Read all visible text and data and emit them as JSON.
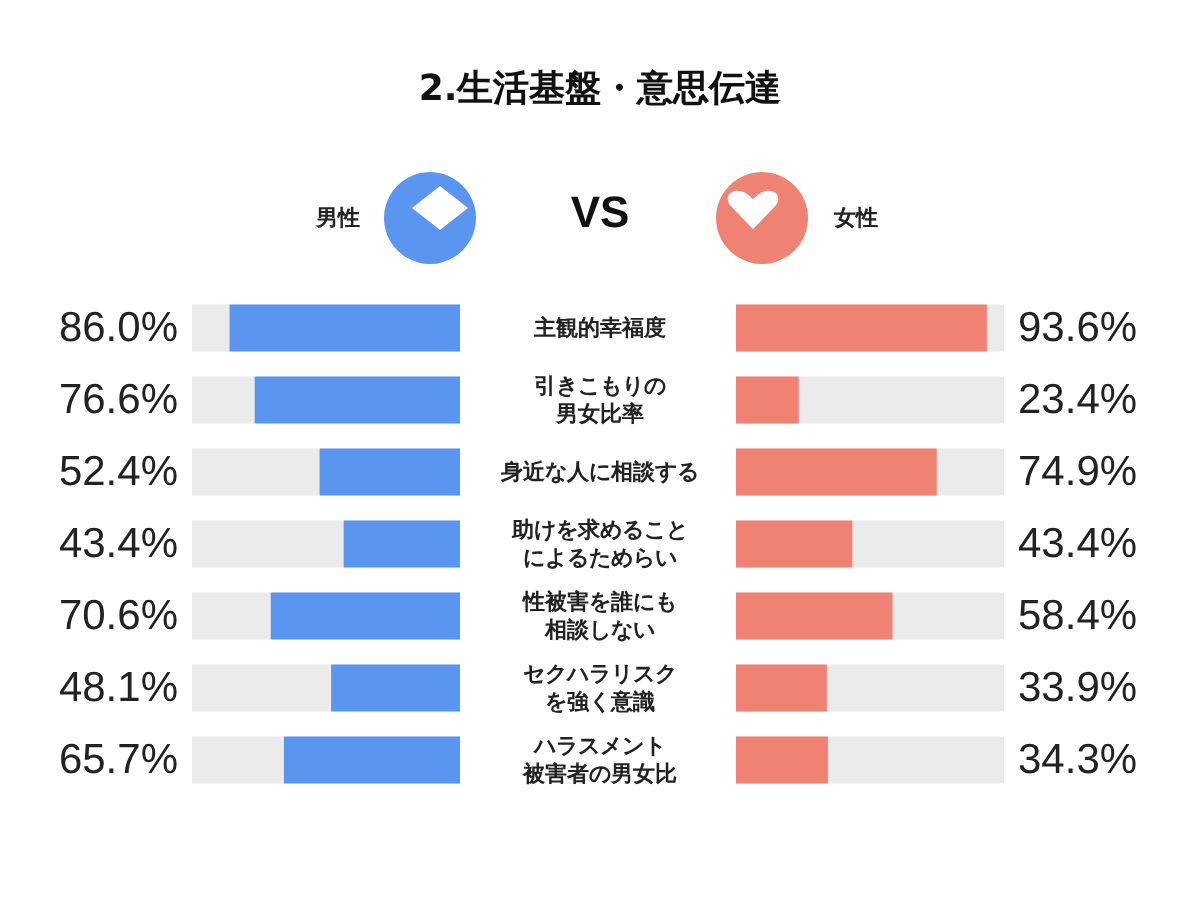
{
  "chart_data": [
    {
      "type": "bar",
      "orientation": "horizontal",
      "title": "2.生活基盤・意思伝達",
      "categories": [
        "主観的幸福度",
        "引きこもりの男女比率",
        "身近な人に相談する",
        "助けを求めることによるためらい",
        "性被害を誰にも相談しない",
        "セクハラリスクを強く意識",
        "ハラスメント被害者の男女比"
      ],
      "series": [
        {
          "name": "男性",
          "color": "#5a96f0",
          "values": [
            86.0,
            76.6,
            52.4,
            43.4,
            70.6,
            48.1,
            65.7
          ],
          "value_labels": [
            "86.0%",
            "76.6%",
            "52.4%",
            "43.4%",
            "70.6%",
            "48.1%",
            "65.7%"
          ]
        }
      ],
      "xlim": [
        100,
        0
      ],
      "tick_labels": false,
      "legend": "top right"
    },
    {
      "type": "bar",
      "orientation": "horizontal",
      "annotations": [
        "VS"
      ],
      "categories": [
        "主観的幸福度",
        "引きこもりの男女比率",
        "身近な人に相談する",
        "助けを求めることによるためらい",
        "性被害を誰にも相談しない",
        "セクハラリスクを強く意識",
        "ハラスメント被害者の男女比"
      ],
      "series": [
        {
          "name": "女性",
          "color": "#ef8272",
          "values": [
            93.6,
            23.4,
            74.9,
            43.4,
            58.4,
            33.9,
            34.3
          ],
          "value_labels": [
            "93.6%",
            "23.4%",
            "74.9%",
            "43.4%",
            "58.4%",
            "33.9%",
            "34.3%"
          ]
        }
      ],
      "xlim": [
        0,
        100
      ],
      "tick_labels": "y",
      "legend": "top left"
    }
  ]
}
